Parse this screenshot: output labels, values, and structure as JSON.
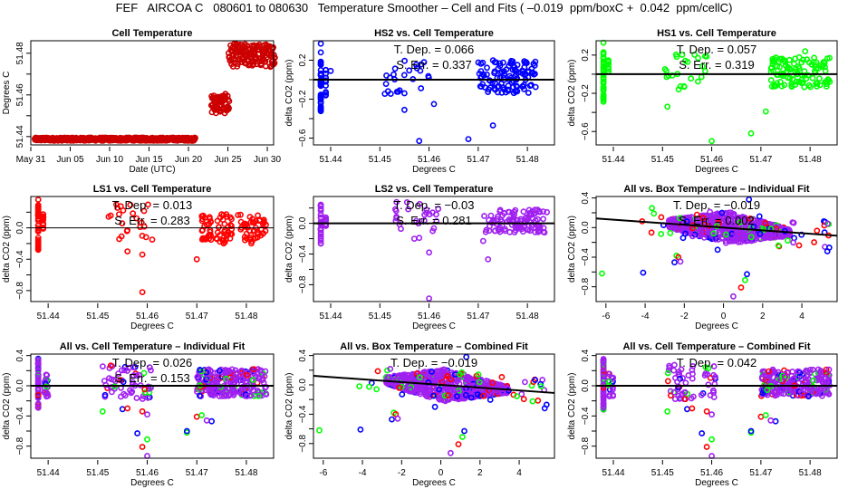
{
  "title": "FEF   AIRCOA C   080601 to 080630   Temperature Smoother – Cell and Fits ( –0.019  ppm/boxC +  0.042  ppm/cellC)",
  "colors": {
    "HS2": "#0000ff",
    "HS1": "#00ff00",
    "LS1": "#ff0000",
    "LS2": "#a020f0",
    "cell": "#cc0000",
    "fit": "#000000"
  },
  "chart_data": [
    {
      "id": "cell-temperature",
      "type": "scatter",
      "title": "Cell Temperature",
      "xlabel": "Date (UTC)",
      "ylabel": "Degrees C",
      "xlim": [
        0,
        30.8
      ],
      "ylim": [
        51.436,
        51.486
      ],
      "xticks": [
        {
          "v": 0,
          "label": "May 31"
        },
        {
          "v": 5,
          "label": "Jun 05"
        },
        {
          "v": 10,
          "label": "Jun 10"
        },
        {
          "v": 15,
          "label": "Jun 15"
        },
        {
          "v": 20,
          "label": "Jun 20"
        },
        {
          "v": 25,
          "label": "Jun 25"
        },
        {
          "v": 30,
          "label": "Jun 30"
        }
      ],
      "yticks": [
        {
          "v": 51.44,
          "label": "51.44"
        },
        {
          "v": 51.45,
          "label": ""
        },
        {
          "v": 51.46,
          "label": "51.46"
        },
        {
          "v": 51.47,
          "label": ""
        },
        {
          "v": 51.48,
          "label": "51.48"
        }
      ],
      "series": [
        {
          "name": "cell",
          "color": "#cc0000",
          "segments": [
            {
              "x0": 0.5,
              "x1": 20.9,
              "ymin": 51.438,
              "ymax": 51.4395
            },
            {
              "x0": 22.9,
              "x1": 25.2,
              "ymin": 51.451,
              "ymax": 51.4605
            },
            {
              "x0": 25.1,
              "x1": 31.0,
              "ymin": 51.4735,
              "ymax": 51.4845
            }
          ]
        }
      ]
    },
    {
      "id": "hs2-vs-cell",
      "type": "scatter",
      "title": "HS2 vs. Cell Temperature",
      "xlabel": "Degrees C",
      "ylabel": "delta CO2 (ppm)",
      "xlim": [
        51.4365,
        51.4855
      ],
      "ylim": [
        -0.67,
        0.4
      ],
      "xticks": [
        51.44,
        51.45,
        51.46,
        51.47,
        51.48
      ],
      "yticks": [
        {
          "v": 0.2,
          "label": "0.2"
        },
        {
          "v": 0,
          "label": ""
        },
        {
          "v": -0.2,
          "label": "−0.2"
        },
        {
          "v": -0.4,
          "label": ""
        },
        {
          "v": -0.6,
          "label": "−0.6"
        }
      ],
      "annotations": [
        "T. Dep. =  0.066",
        "S. Err. =  0.337"
      ],
      "fit": {
        "slope": 0.066,
        "intercept": 0,
        "lw": 2
      },
      "series": [
        {
          "name": "HS2",
          "color": "#0000ff",
          "clusters": [
            {
              "x": 51.438,
              "ymin": -0.33,
              "ymax": 0.22,
              "n": 40
            },
            {
              "x": 51.439,
              "ymin": -0.17,
              "ymax": 0.15,
              "n": 12
            },
            {
              "xmin": 51.451,
              "xmax": 51.461,
              "ymin": -0.15,
              "ymax": 0.21,
              "n": 24
            },
            {
              "xmin": 51.47,
              "xmax": 51.482,
              "ymin": -0.14,
              "ymax": 0.2,
              "n": 110
            }
          ],
          "points": [
            [
              51.438,
              0.37
            ],
            [
              51.438,
              0.28
            ],
            [
              51.44,
              0.09
            ],
            [
              51.455,
              -0.31
            ],
            [
              51.458,
              -0.63
            ],
            [
              51.461,
              -0.25
            ],
            [
              51.468,
              -0.61
            ],
            [
              51.473,
              -0.47
            ],
            [
              51.455,
              -0.14
            ]
          ]
        }
      ]
    },
    {
      "id": "hs1-vs-cell",
      "type": "scatter",
      "title": "HS1 vs. Cell Temperature",
      "xlabel": "Degrees C",
      "ylabel": "delta CO2 (ppm)",
      "xlim": [
        51.4365,
        51.4855
      ],
      "ylim": [
        -0.74,
        0.35
      ],
      "xticks": [
        51.44,
        51.45,
        51.46,
        51.47,
        51.48
      ],
      "yticks": [
        {
          "v": 0.2,
          "label": "0.2"
        },
        {
          "v": 0,
          "label": ""
        },
        {
          "v": -0.2,
          "label": "−0.2"
        },
        {
          "v": -0.4,
          "label": ""
        },
        {
          "v": -0.6,
          "label": "−0.6"
        }
      ],
      "annotations": [
        "T. Dep. =  0.057",
        "S. Err. =  0.319"
      ],
      "fit": {
        "slope": 0.057,
        "intercept": 0,
        "lw": 2
      },
      "series": [
        {
          "name": "HS1",
          "color": "#00ff00",
          "clusters": [
            {
              "x": 51.438,
              "ymin": -0.29,
              "ymax": 0.25,
              "n": 40
            },
            {
              "x": 51.439,
              "ymin": -0.02,
              "ymax": 0.15,
              "n": 10
            },
            {
              "xmin": 51.45,
              "xmax": 51.46,
              "ymin": -0.2,
              "ymax": 0.22,
              "n": 24
            },
            {
              "xmin": 51.472,
              "xmax": 51.484,
              "ymin": -0.14,
              "ymax": 0.18,
              "n": 110
            }
          ],
          "points": [
            [
              51.438,
              0.33
            ],
            [
              51.451,
              -0.34
            ],
            [
              51.46,
              -0.7
            ],
            [
              51.468,
              -0.62
            ],
            [
              51.471,
              -0.39
            ],
            [
              51.479,
              0.24
            ],
            [
              51.484,
              -0.08
            ]
          ]
        }
      ]
    },
    {
      "id": "ls1-vs-cell",
      "type": "scatter",
      "title": "LS1 vs. Cell Temperature",
      "xlabel": "Degrees C",
      "ylabel": "delta CO2 (ppm)",
      "xlim": [
        51.4365,
        51.4855
      ],
      "ylim": [
        -0.94,
        0.4
      ],
      "xticks": [
        51.44,
        51.45,
        51.46,
        51.47,
        51.48
      ],
      "yticks": [
        {
          "v": 0.2,
          "label": ""
        },
        {
          "v": 0,
          "label": "0.0"
        },
        {
          "v": -0.2,
          "label": ""
        },
        {
          "v": -0.4,
          "label": "−0.4"
        },
        {
          "v": -0.6,
          "label": ""
        },
        {
          "v": -0.8,
          "label": "−0.8"
        }
      ],
      "annotations": [
        "T. Dep. =  0.013",
        "S. Err. =  0.283"
      ],
      "fit": {
        "slope": 0.013,
        "intercept": 0,
        "lw": 1
      },
      "series": [
        {
          "name": "LS1",
          "color": "#ff0000",
          "clusters": [
            {
              "x": 51.438,
              "ymin": -0.28,
              "ymax": 0.36,
              "n": 40
            },
            {
              "x": 51.439,
              "ymin": -0.1,
              "ymax": 0.2,
              "n": 12
            },
            {
              "xmin": 51.452,
              "xmax": 51.461,
              "ymin": -0.15,
              "ymax": 0.3,
              "n": 22
            },
            {
              "xmin": 51.471,
              "xmax": 51.484,
              "ymin": -0.2,
              "ymax": 0.18,
              "n": 110
            }
          ],
          "points": [
            [
              51.459,
              -0.82
            ],
            [
              51.456,
              -0.3
            ],
            [
              51.459,
              -0.34
            ],
            [
              51.47,
              -0.4
            ],
            [
              51.461,
              -0.15
            ],
            [
              51.481,
              -0.2
            ]
          ]
        }
      ]
    },
    {
      "id": "ls2-vs-cell",
      "type": "scatter",
      "title": "LS2 vs. Cell Temperature",
      "xlabel": "Degrees C",
      "ylabel": "delta CO2 (ppm)",
      "xlim": [
        51.4365,
        51.4855
      ],
      "ylim": [
        -1.02,
        0.35
      ],
      "xticks": [
        51.44,
        51.45,
        51.46,
        51.47,
        51.48
      ],
      "yticks": [
        {
          "v": 0.2,
          "label": ""
        },
        {
          "v": 0,
          "label": "0.0"
        },
        {
          "v": -0.2,
          "label": ""
        },
        {
          "v": -0.4,
          "label": "−0.4"
        },
        {
          "v": -0.6,
          "label": ""
        },
        {
          "v": -0.8,
          "label": "−0.8"
        }
      ],
      "annotations": [
        "T. Dep. =  −0.03",
        "S. Err. =  0.281"
      ],
      "fit": {
        "slope": -0.03,
        "intercept": 0,
        "lw": 2
      },
      "series": [
        {
          "name": "LS2",
          "color": "#a020f0",
          "clusters": [
            {
              "x": 51.438,
              "ymin": -0.28,
              "ymax": 0.26,
              "n": 30
            },
            {
              "x": 51.439,
              "ymin": -0.05,
              "ymax": 0.08,
              "n": 8
            },
            {
              "xmin": 51.453,
              "xmax": 51.462,
              "ymin": -0.12,
              "ymax": 0.3,
              "n": 24
            },
            {
              "xmin": 51.471,
              "xmax": 51.484,
              "ymin": -0.12,
              "ymax": 0.18,
              "n": 110
            }
          ],
          "points": [
            [
              51.46,
              -0.98
            ],
            [
              51.46,
              -0.38
            ],
            [
              51.472,
              -0.47
            ],
            [
              51.471,
              -0.23
            ],
            [
              51.457,
              -0.2
            ],
            [
              51.458,
              -0.19
            ]
          ]
        }
      ]
    },
    {
      "id": "all-vs-box-individual",
      "type": "scatter",
      "title": "All vs. Box Temperature – Individual Fit",
      "xlabel": "Degrees C",
      "ylabel": "delta CO2 (ppm)",
      "xlim": [
        -6.5,
        5.8
      ],
      "ylim": [
        -1.0,
        0.42
      ],
      "xticks": [
        -6,
        -4,
        -2,
        0,
        2,
        4
      ],
      "yticks": [
        {
          "v": 0.4,
          "label": "0.4"
        },
        {
          "v": 0.2,
          "label": ""
        },
        {
          "v": 0,
          "label": "0.0"
        },
        {
          "v": -0.2,
          "label": ""
        },
        {
          "v": -0.4,
          "label": "−0.4"
        },
        {
          "v": -0.6,
          "label": ""
        },
        {
          "v": -0.8,
          "label": "−0.8"
        }
      ],
      "annotations": [
        "T. Dep. =  −0.019",
        "S. Err. =  0.002"
      ],
      "fit": {
        "slope": -0.019,
        "intercept": 0.0,
        "lw": 2
      },
      "box": true,
      "series": [
        {
          "name": "HS2",
          "color": "#0000ff"
        },
        {
          "name": "HS1",
          "color": "#00ff00"
        },
        {
          "name": "LS1",
          "color": "#ff0000"
        },
        {
          "name": "LS2",
          "color": "#a020f0"
        }
      ],
      "outliers": [
        [
          -6.2,
          -0.62,
          "#00ff00"
        ],
        [
          -4.1,
          -0.61,
          "#0000ff"
        ],
        [
          -2.5,
          -0.47,
          "#0000ff"
        ],
        [
          -2.4,
          -0.38,
          "#00ff00"
        ],
        [
          -2.3,
          -0.4,
          "#ff0000"
        ],
        [
          -2.2,
          -0.46,
          "#a020f0"
        ],
        [
          1.2,
          -0.63,
          "#0000ff"
        ],
        [
          1.1,
          -0.71,
          "#00ff00"
        ],
        [
          0.9,
          -0.81,
          "#ff0000"
        ],
        [
          0.5,
          -0.93,
          "#a020f0"
        ],
        [
          5.3,
          -0.32,
          "#0000ff"
        ],
        [
          5.4,
          -0.27,
          "#0000ff"
        ],
        [
          1.3,
          0.38,
          "#0000ff"
        ],
        [
          -0.3,
          -0.3,
          "#0000ff"
        ]
      ]
    },
    {
      "id": "all-vs-cell-individual",
      "type": "scatter",
      "title": "All vs. Cell Temperature – Individual Fit",
      "xlabel": "Degrees C",
      "ylabel": "delta CO2 (ppm)",
      "xlim": [
        51.4365,
        51.4855
      ],
      "ylim": [
        -0.96,
        0.42
      ],
      "xticks": [
        51.44,
        51.45,
        51.46,
        51.47,
        51.48
      ],
      "yticks": [
        {
          "v": 0.4,
          "label": "0.4"
        },
        {
          "v": 0.2,
          "label": ""
        },
        {
          "v": 0,
          "label": "0.0"
        },
        {
          "v": -0.2,
          "label": ""
        },
        {
          "v": -0.4,
          "label": "−0.4"
        },
        {
          "v": -0.6,
          "label": ""
        },
        {
          "v": -0.8,
          "label": "−0.8"
        }
      ],
      "annotations": [
        "T. Dep. =  0.026",
        "S. Err. =  0.153"
      ],
      "fit": {
        "slope": 0.026,
        "intercept": 0,
        "lw": 2
      },
      "combined_cell": true
    },
    {
      "id": "all-vs-box-combined",
      "type": "scatter",
      "title": "All vs. Box Temperature – Combined Fit",
      "xlabel": "Degrees C",
      "ylabel": "delta CO2 (ppm)",
      "xlim": [
        -6.5,
        5.8
      ],
      "ylim": [
        -1.0,
        0.42
      ],
      "xticks": [
        -6,
        -4,
        -2,
        0,
        2,
        4
      ],
      "yticks": [
        {
          "v": 0.4,
          "label": "0.4"
        },
        {
          "v": 0.2,
          "label": ""
        },
        {
          "v": 0,
          "label": "0.0"
        },
        {
          "v": -0.2,
          "label": ""
        },
        {
          "v": -0.4,
          "label": "−0.4"
        },
        {
          "v": -0.6,
          "label": ""
        },
        {
          "v": -0.8,
          "label": "−0.8"
        }
      ],
      "annotations": [
        "T. Dep. =  −0.019"
      ],
      "fit": {
        "slope": -0.019,
        "intercept": 0.0,
        "lw": 2
      },
      "box": true,
      "outliers": [
        [
          -6.2,
          -0.62,
          "#00ff00"
        ],
        [
          -4.1,
          -0.61,
          "#0000ff"
        ],
        [
          -2.5,
          -0.47,
          "#0000ff"
        ],
        [
          -2.4,
          -0.38,
          "#00ff00"
        ],
        [
          -2.3,
          -0.4,
          "#ff0000"
        ],
        [
          -2.2,
          -0.46,
          "#a020f0"
        ],
        [
          1.2,
          -0.63,
          "#0000ff"
        ],
        [
          1.1,
          -0.71,
          "#00ff00"
        ],
        [
          0.9,
          -0.81,
          "#ff0000"
        ],
        [
          0.5,
          -0.93,
          "#a020f0"
        ],
        [
          5.3,
          -0.32,
          "#0000ff"
        ],
        [
          5.4,
          -0.27,
          "#0000ff"
        ],
        [
          1.3,
          0.38,
          "#0000ff"
        ],
        [
          -0.3,
          -0.3,
          "#0000ff"
        ]
      ]
    },
    {
      "id": "all-vs-cell-combined",
      "type": "scatter",
      "title": "All vs. Cell Temperature – Combined Fit",
      "xlabel": "Degrees C",
      "ylabel": "delta CO2 (ppm)",
      "xlim": [
        51.4365,
        51.4855
      ],
      "ylim": [
        -0.96,
        0.42
      ],
      "xticks": [
        51.44,
        51.45,
        51.46,
        51.47,
        51.48
      ],
      "yticks": [
        {
          "v": 0.4,
          "label": "0.4"
        },
        {
          "v": 0.2,
          "label": ""
        },
        {
          "v": 0,
          "label": "0.0"
        },
        {
          "v": -0.2,
          "label": ""
        },
        {
          "v": -0.4,
          "label": "−0.4"
        },
        {
          "v": -0.6,
          "label": ""
        },
        {
          "v": -0.8,
          "label": "−0.8"
        }
      ],
      "annotations": [
        "T. Dep. =  0.042"
      ],
      "fit": {
        "slope": 0.042,
        "intercept": 0,
        "lw": 2
      },
      "combined_cell": true
    }
  ]
}
